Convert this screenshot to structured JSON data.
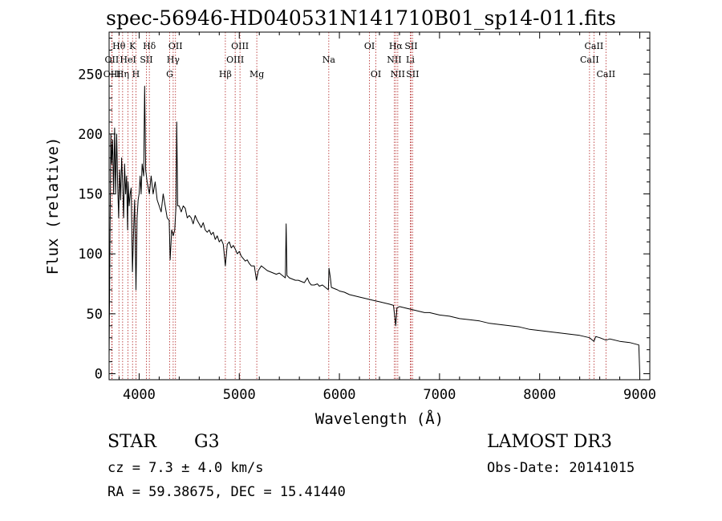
{
  "title": "spec-56946-HD040531N141710B01_sp14-011.fits",
  "info": {
    "class_label": "STAR",
    "subclass": "G3",
    "redshift": "cz = 7.3 ± 4.0 km/s",
    "coords": "RA =  59.38675, DEC =  15.41440",
    "survey": "LAMOST DR3",
    "obs_date": "Obs-Date: 20141015"
  },
  "colors": {
    "line": "#000000",
    "marker": "#b22222",
    "axis": "#000000"
  },
  "chart_data": {
    "type": "line",
    "title": "spec-56946-HD040531N141710B01_sp14-011.fits",
    "xlabel": "Wavelength (Å)",
    "ylabel": "Flux (relative)",
    "xlim": [
      3700,
      9100
    ],
    "ylim": [
      -5,
      285
    ],
    "xticks": [
      4000,
      5000,
      6000,
      7000,
      8000,
      9000
    ],
    "yticks": [
      0,
      50,
      100,
      150,
      200,
      250
    ],
    "series": [
      {
        "name": "flux",
        "points": [
          [
            3700,
            15
          ],
          [
            3710,
            120
          ],
          [
            3718,
            200
          ],
          [
            3725,
            175
          ],
          [
            3735,
            195
          ],
          [
            3745,
            150
          ],
          [
            3755,
            205
          ],
          [
            3765,
            150
          ],
          [
            3775,
            200
          ],
          [
            3785,
            160
          ],
          [
            3795,
            130
          ],
          [
            3805,
            170
          ],
          [
            3815,
            145
          ],
          [
            3825,
            180
          ],
          [
            3835,
            160
          ],
          [
            3845,
            130
          ],
          [
            3855,
            175
          ],
          [
            3865,
            150
          ],
          [
            3875,
            165
          ],
          [
            3885,
            120
          ],
          [
            3890,
            160
          ],
          [
            3900,
            140
          ],
          [
            3910,
            150
          ],
          [
            3920,
            155
          ],
          [
            3933,
            85
          ],
          [
            3945,
            120
          ],
          [
            3955,
            145
          ],
          [
            3968,
            70
          ],
          [
            3980,
            130
          ],
          [
            3990,
            145
          ],
          [
            4000,
            150
          ],
          [
            4010,
            165
          ],
          [
            4020,
            150
          ],
          [
            4030,
            175
          ],
          [
            4045,
            165
          ],
          [
            4055,
            240
          ],
          [
            4065,
            170
          ],
          [
            4080,
            160
          ],
          [
            4102,
            150
          ],
          [
            4120,
            165
          ],
          [
            4140,
            150
          ],
          [
            4160,
            160
          ],
          [
            4180,
            145
          ],
          [
            4200,
            140
          ],
          [
            4220,
            135
          ],
          [
            4240,
            150
          ],
          [
            4260,
            140
          ],
          [
            4280,
            130
          ],
          [
            4300,
            128
          ],
          [
            4310,
            95
          ],
          [
            4325,
            120
          ],
          [
            4340,
            115
          ],
          [
            4355,
            120
          ],
          [
            4368,
            140
          ],
          [
            4375,
            210
          ],
          [
            4385,
            140
          ],
          [
            4400,
            140
          ],
          [
            4420,
            135
          ],
          [
            4440,
            140
          ],
          [
            4460,
            138
          ],
          [
            4480,
            130
          ],
          [
            4500,
            132
          ],
          [
            4520,
            130
          ],
          [
            4540,
            125
          ],
          [
            4560,
            132
          ],
          [
            4580,
            128
          ],
          [
            4600,
            125
          ],
          [
            4620,
            122
          ],
          [
            4640,
            126
          ],
          [
            4660,
            120
          ],
          [
            4680,
            118
          ],
          [
            4700,
            120
          ],
          [
            4720,
            116
          ],
          [
            4740,
            118
          ],
          [
            4760,
            112
          ],
          [
            4780,
            115
          ],
          [
            4800,
            110
          ],
          [
            4820,
            112
          ],
          [
            4840,
            108
          ],
          [
            4861,
            90
          ],
          [
            4880,
            108
          ],
          [
            4900,
            110
          ],
          [
            4920,
            105
          ],
          [
            4940,
            107
          ],
          [
            4960,
            104
          ],
          [
            4980,
            100
          ],
          [
            5000,
            102
          ],
          [
            5020,
            98
          ],
          [
            5040,
            96
          ],
          [
            5060,
            94
          ],
          [
            5080,
            95
          ],
          [
            5100,
            92
          ],
          [
            5120,
            90
          ],
          [
            5150,
            90
          ],
          [
            5172,
            78
          ],
          [
            5190,
            86
          ],
          [
            5220,
            90
          ],
          [
            5250,
            88
          ],
          [
            5280,
            86
          ],
          [
            5310,
            85
          ],
          [
            5340,
            84
          ],
          [
            5370,
            83
          ],
          [
            5400,
            84
          ],
          [
            5430,
            82
          ],
          [
            5460,
            80
          ],
          [
            5468,
            125
          ],
          [
            5476,
            82
          ],
          [
            5500,
            80
          ],
          [
            5530,
            79
          ],
          [
            5560,
            78
          ],
          [
            5590,
            78
          ],
          [
            5620,
            77
          ],
          [
            5650,
            76
          ],
          [
            5680,
            80
          ],
          [
            5700,
            76
          ],
          [
            5720,
            74
          ],
          [
            5750,
            74
          ],
          [
            5780,
            75
          ],
          [
            5800,
            73
          ],
          [
            5830,
            74
          ],
          [
            5860,
            72
          ],
          [
            5890,
            70
          ],
          [
            5896,
            88
          ],
          [
            5910,
            80
          ],
          [
            5920,
            72
          ],
          [
            5950,
            71
          ],
          [
            5980,
            70
          ],
          [
            6000,
            69
          ],
          [
            6050,
            68
          ],
          [
            6100,
            66
          ],
          [
            6150,
            65
          ],
          [
            6200,
            64
          ],
          [
            6250,
            63
          ],
          [
            6300,
            62
          ],
          [
            6350,
            61
          ],
          [
            6400,
            60
          ],
          [
            6450,
            59
          ],
          [
            6500,
            58
          ],
          [
            6540,
            57
          ],
          [
            6563,
            40
          ],
          [
            6575,
            55
          ],
          [
            6600,
            56
          ],
          [
            6650,
            55
          ],
          [
            6700,
            54
          ],
          [
            6750,
            53
          ],
          [
            6800,
            52
          ],
          [
            6850,
            51
          ],
          [
            6900,
            51
          ],
          [
            6950,
            50
          ],
          [
            7000,
            49
          ],
          [
            7100,
            48
          ],
          [
            7200,
            46
          ],
          [
            7300,
            45
          ],
          [
            7400,
            44
          ],
          [
            7500,
            42
          ],
          [
            7600,
            41
          ],
          [
            7700,
            40
          ],
          [
            7800,
            39
          ],
          [
            7900,
            37
          ],
          [
            8000,
            36
          ],
          [
            8100,
            35
          ],
          [
            8200,
            34
          ],
          [
            8300,
            33
          ],
          [
            8400,
            32
          ],
          [
            8498,
            30
          ],
          [
            8542,
            27
          ],
          [
            8560,
            31
          ],
          [
            8600,
            30
          ],
          [
            8662,
            28
          ],
          [
            8700,
            29
          ],
          [
            8800,
            27
          ],
          [
            8900,
            26
          ],
          [
            8990,
            24
          ],
          [
            9000,
            0
          ]
        ]
      }
    ],
    "line_markers": [
      {
        "label": "Hθ",
        "wave": 3798,
        "row": 0
      },
      {
        "label": "OII",
        "wave": 3727,
        "row": 1
      },
      {
        "label": "OIII",
        "wave": 3730,
        "row": 2
      },
      {
        "label": "K",
        "wave": 3934,
        "row": 0
      },
      {
        "label": "HeI",
        "wave": 3889,
        "row": 1
      },
      {
        "label": "Hη",
        "wave": 3835,
        "row": 2
      },
      {
        "label": "Hδ",
        "wave": 4102,
        "row": 0
      },
      {
        "label": "SII",
        "wave": 4072,
        "row": 1
      },
      {
        "label": "H",
        "wave": 3968,
        "row": 2
      },
      {
        "label": "OII",
        "wave": 4363,
        "row": 0
      },
      {
        "label": "Hγ",
        "wave": 4340,
        "row": 1
      },
      {
        "label": "G",
        "wave": 4305,
        "row": 2
      },
      {
        "label": "OIII",
        "wave": 5007,
        "row": 0
      },
      {
        "label": "OIII",
        "wave": 4959,
        "row": 1
      },
      {
        "label": "Hβ",
        "wave": 4861,
        "row": 2
      },
      {
        "label": "Mg",
        "wave": 5175,
        "row": 2
      },
      {
        "label": "Na",
        "wave": 5894,
        "row": 1
      },
      {
        "label": "OI",
        "wave": 6300,
        "row": 0
      },
      {
        "label": "OI",
        "wave": 6364,
        "row": 2
      },
      {
        "label": "Hα",
        "wave": 6563,
        "row": 0
      },
      {
        "label": "SII",
        "wave": 6716,
        "row": 0
      },
      {
        "label": "NII",
        "wave": 6548,
        "row": 1
      },
      {
        "label": "Li",
        "wave": 6708,
        "row": 1
      },
      {
        "label": "NII",
        "wave": 6583,
        "row": 2
      },
      {
        "label": "SII",
        "wave": 6731,
        "row": 2
      },
      {
        "label": "CaII",
        "wave": 8542,
        "row": 0
      },
      {
        "label": "CaII",
        "wave": 8498,
        "row": 1
      },
      {
        "label": "CaII",
        "wave": 8662,
        "row": 2
      }
    ]
  }
}
